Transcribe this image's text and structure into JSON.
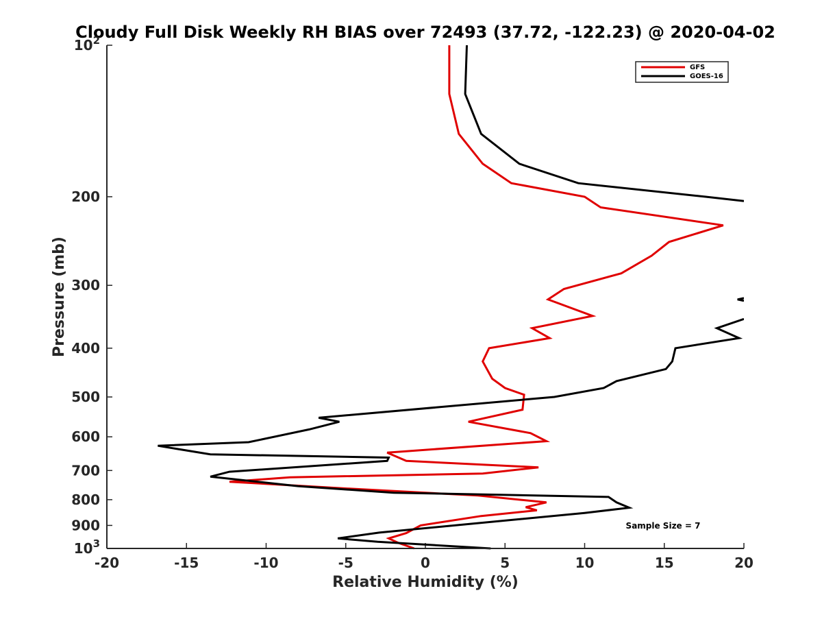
{
  "chart_data": {
    "type": "line",
    "title": "Cloudy Full Disk Weekly RH BIAS over 72493 (37.72, -122.23) @ 2020-04-02",
    "xlabel": "Relative Humidity (%)",
    "ylabel": "Pressure (mb)",
    "xlim": [
      -20,
      20
    ],
    "ylim": [
      100,
      1000
    ],
    "y_scale": "log",
    "y_reversed": true,
    "grid": false,
    "legend_position": "top-right",
    "annotation": "Sample Size = 7",
    "x_ticks": [
      {
        "value": -20,
        "label": "-20"
      },
      {
        "value": -15,
        "label": "-15"
      },
      {
        "value": -10,
        "label": "-10"
      },
      {
        "value": -5,
        "label": "-5"
      },
      {
        "value": 0,
        "label": "0"
      },
      {
        "value": 5,
        "label": "5"
      },
      {
        "value": 10,
        "label": "10"
      },
      {
        "value": 15,
        "label": "15"
      },
      {
        "value": 20,
        "label": "20"
      }
    ],
    "y_ticks": [
      {
        "value": 100,
        "label": "10",
        "sup": "2"
      },
      {
        "value": 200,
        "label": "200"
      },
      {
        "value": 300,
        "label": "300"
      },
      {
        "value": 400,
        "label": "400"
      },
      {
        "value": 500,
        "label": "500"
      },
      {
        "value": 600,
        "label": "600"
      },
      {
        "value": 700,
        "label": "700"
      },
      {
        "value": 800,
        "label": "800"
      },
      {
        "value": 900,
        "label": "900"
      },
      {
        "value": 1000,
        "label": "10",
        "sup": "3"
      }
    ],
    "series": [
      {
        "name": "GFS",
        "color": "#e00000",
        "points": [
          [
            1.5,
            100
          ],
          [
            1.5,
            125
          ],
          [
            2.1,
            150
          ],
          [
            3.6,
            172
          ],
          [
            5.4,
            188
          ],
          [
            10.0,
            200
          ],
          [
            11.0,
            210
          ],
          [
            18.7,
            228
          ],
          [
            15.3,
            246
          ],
          [
            14.2,
            262
          ],
          [
            12.3,
            284
          ],
          [
            8.7,
            305
          ],
          [
            7.7,
            320
          ],
          [
            10.5,
            345
          ],
          [
            6.7,
            365
          ],
          [
            7.8,
            382
          ],
          [
            4.0,
            400
          ],
          [
            3.6,
            425
          ],
          [
            4.2,
            460
          ],
          [
            5.0,
            480
          ],
          [
            6.2,
            495
          ],
          [
            6.1,
            530
          ],
          [
            2.7,
            560
          ],
          [
            6.6,
            590
          ],
          [
            7.6,
            612
          ],
          [
            -2.4,
            645
          ],
          [
            -1.2,
            670
          ],
          [
            7.1,
            690
          ],
          [
            3.6,
            710
          ],
          [
            -8.5,
            722
          ],
          [
            -12.3,
            737
          ],
          [
            -5.0,
            760
          ],
          [
            3.3,
            785
          ],
          [
            7.6,
            810
          ],
          [
            6.3,
            828
          ],
          [
            7.0,
            840
          ],
          [
            3.5,
            862
          ],
          [
            -0.3,
            900
          ],
          [
            -1.2,
            932
          ],
          [
            -2.3,
            955
          ],
          [
            -1.7,
            975
          ],
          [
            -0.7,
            1000
          ]
        ]
      },
      {
        "name": "GOES-16",
        "color": "#000000",
        "points": [
          [
            2.6,
            100
          ],
          [
            2.5,
            125
          ],
          [
            3.5,
            150
          ],
          [
            5.9,
            172
          ],
          [
            9.6,
            188
          ],
          [
            17.6,
            200
          ],
          [
            20.0,
            204
          ],
          null,
          [
            20.0,
            318
          ],
          [
            19.6,
            320
          ],
          [
            20.0,
            322
          ],
          null,
          [
            20.0,
            350
          ],
          [
            18.3,
            365
          ],
          [
            19.7,
            382
          ],
          [
            15.7,
            400
          ],
          [
            15.5,
            425
          ],
          [
            15.1,
            440
          ],
          [
            12.0,
            465
          ],
          [
            11.2,
            480
          ],
          [
            8.1,
            500
          ],
          [
            -6.7,
            550
          ],
          [
            -5.4,
            560
          ],
          [
            -7.3,
            580
          ],
          [
            -11.1,
            615
          ],
          [
            -16.8,
            625
          ],
          [
            -13.5,
            650
          ],
          [
            -2.3,
            660
          ],
          [
            -2.4,
            670
          ],
          [
            -12.3,
            704
          ],
          [
            -13.5,
            720
          ],
          [
            -8.0,
            752
          ],
          [
            -2.0,
            775
          ],
          [
            11.5,
            790
          ],
          [
            12.0,
            810
          ],
          [
            12.8,
            830
          ],
          [
            10.0,
            850
          ],
          [
            -2.9,
            930
          ],
          [
            -5.5,
            955
          ],
          [
            -3.0,
            970
          ],
          [
            4.1,
            1000
          ]
        ]
      }
    ]
  }
}
